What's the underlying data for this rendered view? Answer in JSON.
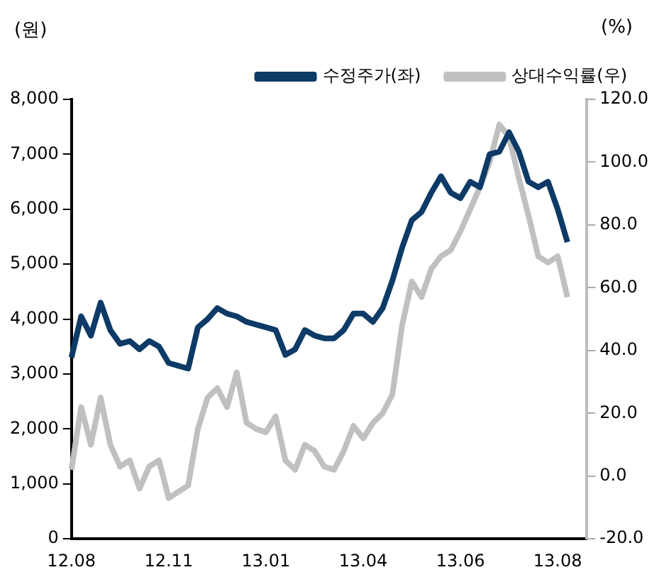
{
  "chart_data": {
    "type": "line",
    "ylabel": "(원)",
    "y2label": "(%)",
    "categories": [
      "12.08",
      null,
      null,
      null,
      null,
      null,
      null,
      null,
      null,
      null,
      "12.11",
      null,
      null,
      null,
      null,
      null,
      null,
      null,
      null,
      null,
      "13.01",
      null,
      null,
      null,
      null,
      null,
      null,
      null,
      null,
      null,
      "13.04",
      null,
      null,
      null,
      null,
      null,
      null,
      null,
      null,
      null,
      "13.06",
      null,
      null,
      null,
      null,
      null,
      null,
      null,
      null,
      null,
      "13.08",
      null,
      null,
      null
    ],
    "series": [
      {
        "name": "수정주가(좌)",
        "color": "#0d3a66",
        "values": [
          3300,
          4050,
          3700,
          4300,
          3800,
          3550,
          3600,
          3450,
          3600,
          3500,
          3200,
          3150,
          3100,
          3850,
          4000,
          4200,
          4100,
          4050,
          3950,
          3900,
          3850,
          3800,
          3350,
          3450,
          3800,
          3700,
          3650,
          3650,
          3800,
          4100,
          4100,
          3950,
          4200,
          4700,
          5300,
          5800,
          5950,
          6300,
          6600,
          6300,
          6200,
          6500,
          6400,
          7000,
          7050,
          7400,
          7050,
          6500,
          6400,
          6500,
          6000,
          5400,
          null,
          null
        ]
      },
      {
        "name": "상대수익률(우)",
        "color": "#c0c0c0",
        "axis": "y2",
        "values": [
          2,
          22,
          10,
          25,
          10,
          3,
          5,
          -4,
          3,
          5,
          -7,
          -5,
          -3,
          15,
          25,
          28,
          22,
          33,
          17,
          15,
          14,
          19,
          5,
          2,
          10,
          8,
          3,
          2,
          8,
          16,
          12,
          17,
          20,
          26,
          48,
          62,
          57,
          66,
          70,
          72,
          78,
          85,
          92,
          100,
          112,
          108,
          95,
          83,
          70,
          68,
          70,
          57,
          null,
          null
        ]
      }
    ],
    "ylim": [
      0,
      8000
    ],
    "yticks": [
      0,
      {
        "value": 1000,
        "label": "1,000"
      },
      {
        "value": 2000,
        "label": "2,000"
      },
      {
        "value": 3000,
        "label": "3,000"
      },
      {
        "value": 4000,
        "label": "4,000"
      },
      {
        "value": 5000,
        "label": "5,000"
      },
      {
        "value": 6000,
        "label": "6,000"
      },
      {
        "value": 7000,
        "label": "7,000"
      },
      {
        "value": 8000,
        "label": "8,000"
      }
    ],
    "y2lim": [
      -20,
      120
    ],
    "y2ticks": [
      {
        "value": -20,
        "label": "-20.0"
      },
      {
        "value": 0,
        "label": "0.0"
      },
      {
        "value": 20,
        "label": "20.0"
      },
      {
        "value": 40,
        "label": "40.0"
      },
      {
        "value": 60,
        "label": "60.0"
      },
      {
        "value": 80,
        "label": "80.0"
      },
      {
        "value": 100,
        "label": "100.0"
      },
      {
        "value": 120,
        "label": "120.0"
      }
    ],
    "grid": false,
    "legend": "top",
    "marker": "none",
    "line_style": "solid"
  }
}
